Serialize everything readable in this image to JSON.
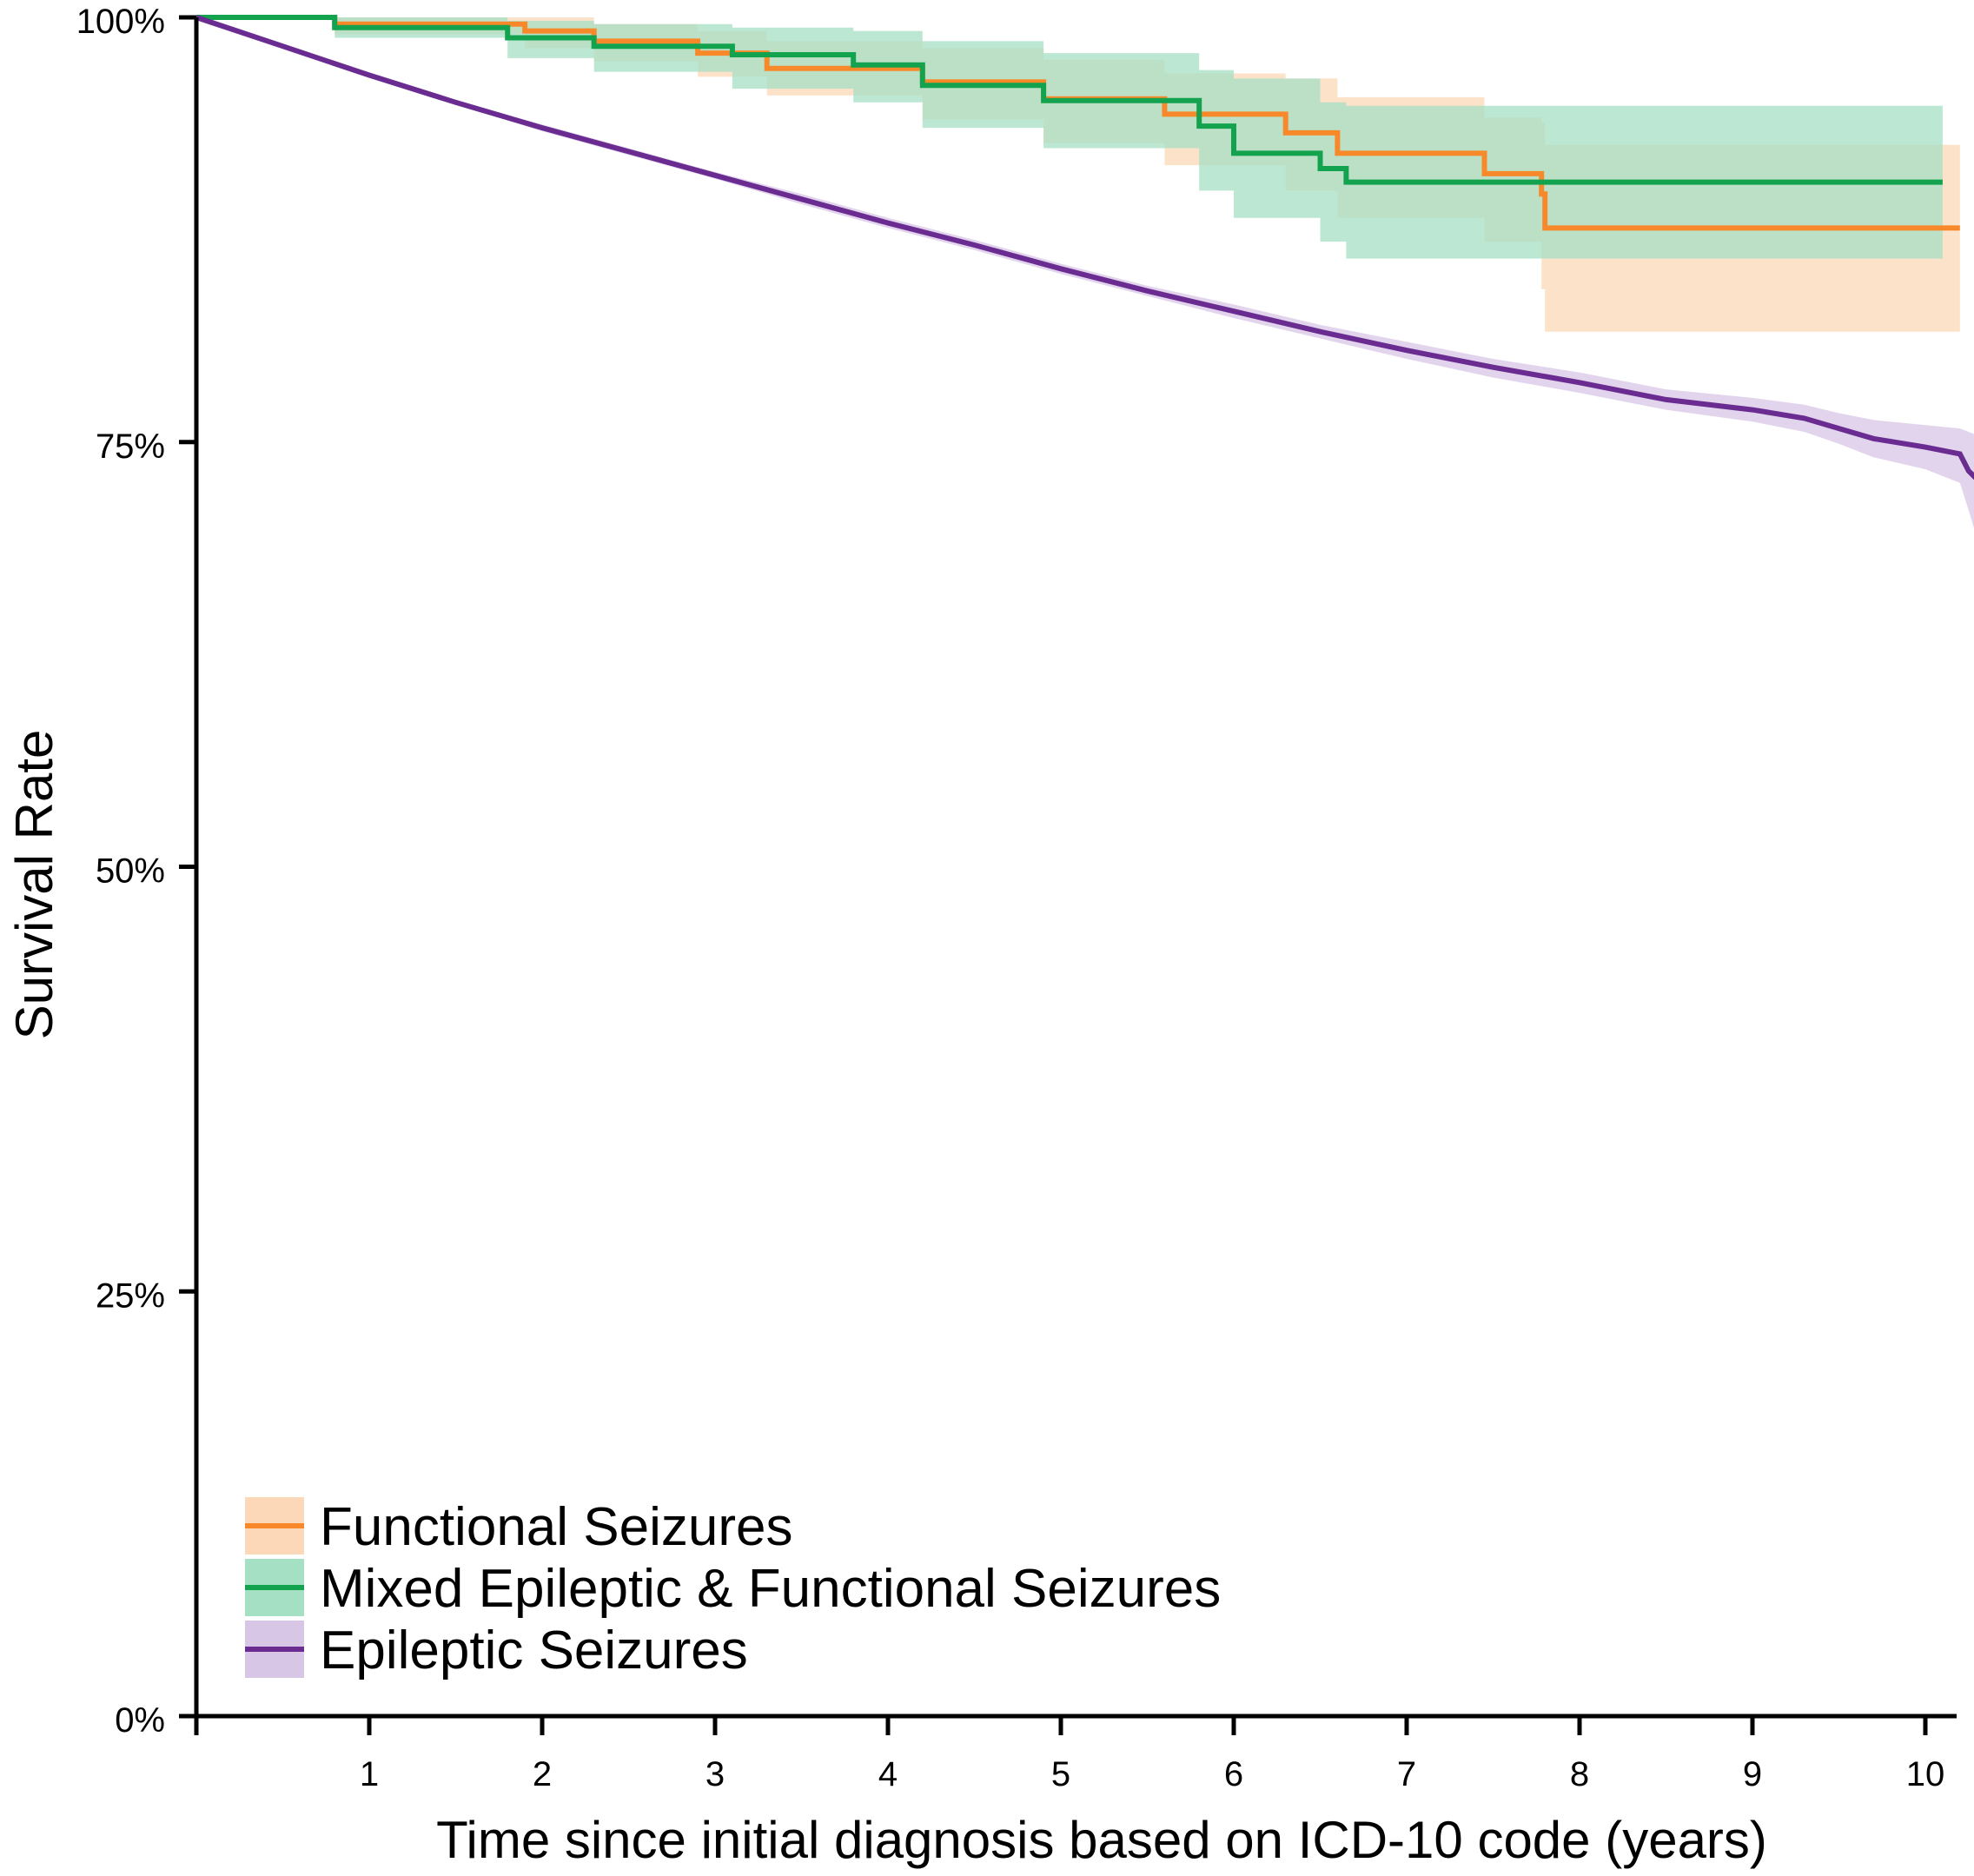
{
  "chart_data": {
    "type": "line",
    "title": "",
    "xlabel": "Time since initial diagnosis based on ICD-10 code (years)",
    "ylabel": "Survival Rate",
    "xlim": [
      0,
      10.2
    ],
    "ylim": [
      0,
      100
    ],
    "x_ticks": [
      1,
      2,
      3,
      4,
      5,
      6,
      7,
      8,
      9,
      10
    ],
    "x_tick_labels": [
      "1",
      "2",
      "3",
      "4",
      "5",
      "6",
      "7",
      "8",
      "9",
      "10"
    ],
    "y_ticks": [
      0,
      25,
      50,
      75,
      100
    ],
    "y_tick_labels": [
      "0%",
      "25%",
      "50%",
      "75%",
      "100%"
    ],
    "grid": false,
    "legend_position": "bottom-left",
    "series": [
      {
        "name": "Functional Seizures",
        "color": "#F7892A",
        "band_color": "#FCD8B8",
        "step": true,
        "x": [
          0,
          0.8,
          1.9,
          2.3,
          2.9,
          3.3,
          4.2,
          4.9,
          5.6,
          6.3,
          6.6,
          7.45,
          7.78,
          7.8,
          10.2
        ],
        "y": [
          100,
          99.6,
          99.2,
          98.6,
          97.9,
          97.0,
          96.2,
          95.2,
          94.3,
          93.2,
          92.0,
          90.8,
          89.6,
          87.6,
          87.6
        ],
        "lower": [
          100,
          99.0,
          98.2,
          97.4,
          96.5,
          95.4,
          94.0,
          92.6,
          91.3,
          89.8,
          88.2,
          86.8,
          84.0,
          81.5,
          81.5
        ],
        "upper": [
          100,
          100,
          100,
          99.6,
          99.2,
          98.6,
          98.2,
          97.5,
          96.7,
          96.4,
          95.3,
          94.1,
          93.8,
          92.5,
          92.5
        ]
      },
      {
        "name": "Mixed Epileptic & Functional Seizures",
        "color": "#13A34F",
        "band_color": "#A5DFC4",
        "step": true,
        "x": [
          0,
          0.8,
          1.8,
          2.3,
          3.1,
          3.8,
          4.2,
          4.9,
          5.8,
          6.0,
          6.5,
          6.65,
          10.1
        ],
        "y": [
          100,
          99.4,
          98.8,
          98.3,
          97.8,
          97.2,
          96.0,
          95.1,
          93.6,
          92.0,
          91.1,
          90.3,
          90.3
        ],
        "lower": [
          100,
          98.8,
          97.6,
          96.8,
          95.8,
          95.0,
          93.5,
          92.3,
          89.8,
          88.2,
          86.8,
          85.8,
          85.8
        ],
        "upper": [
          100,
          100,
          99.8,
          99.6,
          99.4,
          99.2,
          98.6,
          97.9,
          96.9,
          96.4,
          95.0,
          94.8,
          94.8
        ]
      },
      {
        "name": "Epileptic Seizures",
        "color": "#6A2C91",
        "band_color": "#D8C6E6",
        "step": false,
        "x": [
          0,
          0.5,
          1,
          1.5,
          2,
          2.5,
          3,
          3.5,
          4,
          4.5,
          5,
          5.5,
          6,
          6.5,
          7,
          7.5,
          8,
          8.5,
          9,
          9.3,
          9.5,
          9.7,
          10.0,
          10.2,
          10.25,
          10.3
        ],
        "y": [
          100,
          98.3,
          96.6,
          95.0,
          93.5,
          92.1,
          90.7,
          89.3,
          87.9,
          86.6,
          85.2,
          83.9,
          82.7,
          81.5,
          80.4,
          79.4,
          78.5,
          77.5,
          76.9,
          76.4,
          75.8,
          75.2,
          74.7,
          74.3,
          73.3,
          72.8
        ],
        "lower": [
          100,
          98.2,
          96.5,
          94.9,
          93.3,
          91.9,
          90.5,
          89.0,
          87.6,
          86.3,
          84.9,
          83.6,
          82.3,
          81.1,
          79.9,
          78.8,
          77.9,
          76.9,
          76.2,
          75.6,
          74.9,
          74.1,
          73.4,
          72.6,
          71.0,
          69.3
        ],
        "upper": [
          100,
          98.4,
          96.7,
          95.1,
          93.7,
          92.3,
          90.9,
          89.6,
          88.2,
          86.9,
          85.5,
          84.2,
          83.1,
          81.9,
          80.9,
          79.9,
          79.1,
          78.1,
          77.6,
          77.2,
          76.7,
          76.3,
          76.0,
          75.8,
          75.6,
          75.4
        ]
      }
    ]
  }
}
